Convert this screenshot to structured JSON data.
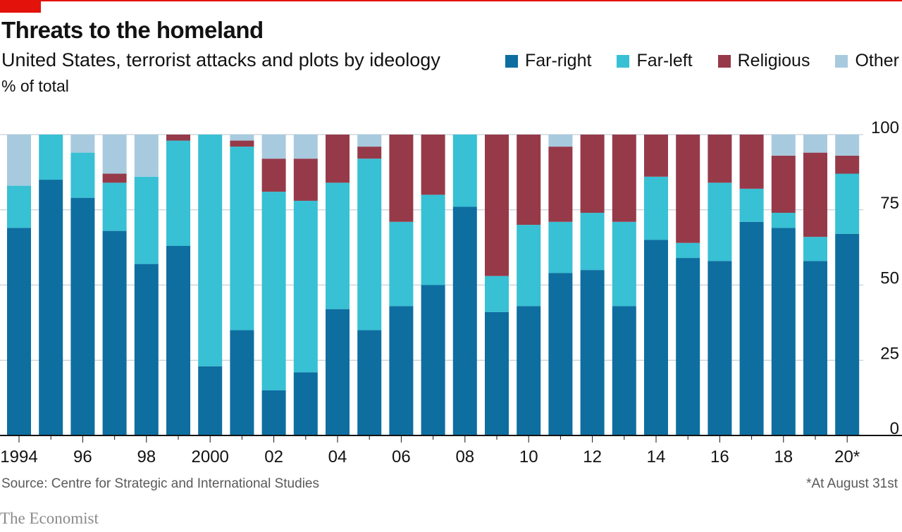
{
  "header": {
    "title": "Threats to the homeland",
    "subtitle": "United States, terrorist attacks and plots by ideology",
    "units": "% of total"
  },
  "legend": [
    {
      "label": "Far-right",
      "color": "#0e6ea0"
    },
    {
      "label": "Far-left",
      "color": "#38c0d4"
    },
    {
      "label": "Religious",
      "color": "#963a4a"
    },
    {
      "label": "Other",
      "color": "#a8cadf"
    }
  ],
  "footer": {
    "source": "Source: Centre for Strategic and International Studies",
    "footnote": "*At August 31st",
    "brand": "The Economist"
  },
  "chart_data": {
    "type": "bar",
    "stacked": true,
    "categories": [
      "1994",
      "1995",
      "1996",
      "1997",
      "1998",
      "1999",
      "2000",
      "2001",
      "2002",
      "2003",
      "2004",
      "2005",
      "2006",
      "2007",
      "2008",
      "2009",
      "2010",
      "2011",
      "2012",
      "2013",
      "2014",
      "2015",
      "2016",
      "2017",
      "2018",
      "2019",
      "2020*"
    ],
    "x_tick_labels": [
      "1994",
      "96",
      "98",
      "2000",
      "02",
      "04",
      "06",
      "08",
      "10",
      "12",
      "14",
      "16",
      "18",
      "20*"
    ],
    "x_tick_indices": [
      0,
      2,
      4,
      6,
      8,
      10,
      12,
      14,
      16,
      18,
      20,
      22,
      24,
      26
    ],
    "series": [
      {
        "name": "Far-right",
        "color": "#0e6ea0",
        "values": [
          69,
          85,
          79,
          68,
          57,
          63,
          23,
          35,
          15,
          21,
          42,
          35,
          43,
          50,
          76,
          41,
          43,
          54,
          55,
          43,
          65,
          59,
          58,
          71,
          69,
          58,
          67
        ]
      },
      {
        "name": "Far-left",
        "color": "#38c0d4",
        "values": [
          14,
          15,
          15,
          16,
          29,
          35,
          77,
          61,
          66,
          57,
          42,
          57,
          28,
          30,
          24,
          12,
          27,
          17,
          19,
          28,
          21,
          5,
          26,
          11,
          5,
          8,
          20
        ]
      },
      {
        "name": "Religious",
        "color": "#963a4a",
        "values": [
          0,
          0,
          0,
          3,
          0,
          2,
          0,
          2,
          11,
          14,
          16,
          4,
          29,
          20,
          0,
          47,
          30,
          25,
          26,
          29,
          14,
          36,
          16,
          18,
          19,
          28,
          6
        ]
      },
      {
        "name": "Other",
        "color": "#a8cadf",
        "values": [
          17,
          0,
          6,
          13,
          14,
          0,
          0,
          2,
          8,
          8,
          0,
          4,
          0,
          0,
          0,
          0,
          0,
          4,
          0,
          0,
          0,
          0,
          0,
          0,
          7,
          6,
          7
        ]
      }
    ],
    "ylim": [
      0,
      100
    ],
    "yticks": [
      0,
      25,
      50,
      75,
      100
    ],
    "grid": true,
    "y_axis_side": "right",
    "legend_position": "top-right"
  }
}
